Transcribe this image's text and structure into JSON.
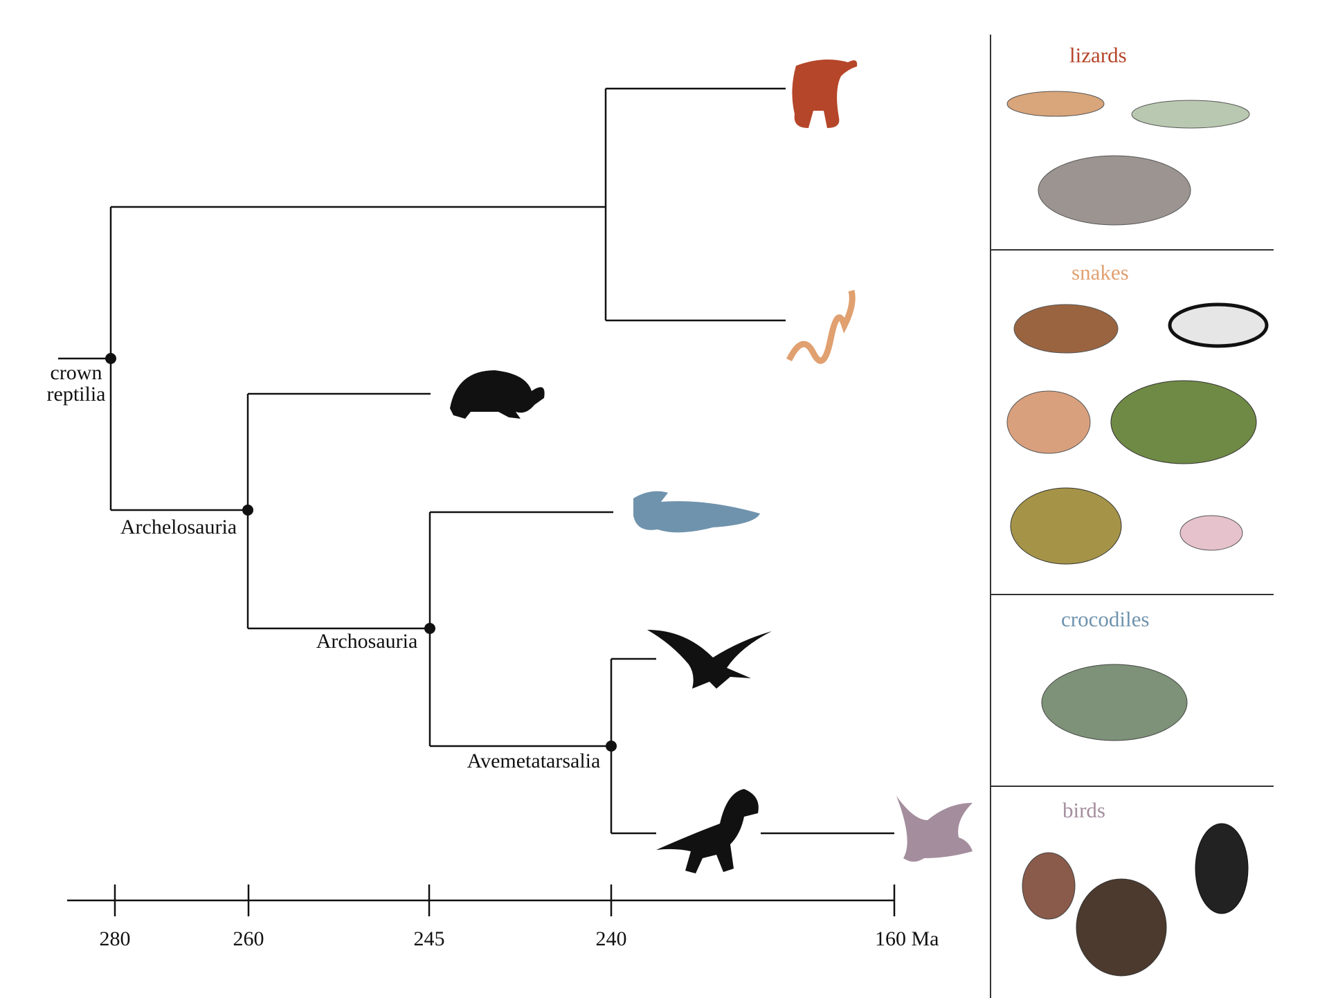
{
  "tree": {
    "clades": [
      {
        "label_lines": [
          "crown",
          "reptilia"
        ]
      },
      {
        "label_lines": [
          "Archelosauria"
        ]
      },
      {
        "label_lines": [
          "Archosauria"
        ]
      },
      {
        "label_lines": [
          "Avemetatarsalia"
        ]
      }
    ]
  },
  "axis": {
    "ticks": [
      "280",
      "260",
      "245",
      "240",
      "160 Ma"
    ]
  },
  "groups": [
    {
      "name": "lizards",
      "color": "#b5462a"
    },
    {
      "name": "snakes",
      "color": "#e0a070"
    },
    {
      "name": "crocodiles",
      "color": "#6f93ad"
    },
    {
      "name": "birds",
      "color": "#a48e9e"
    }
  ]
}
